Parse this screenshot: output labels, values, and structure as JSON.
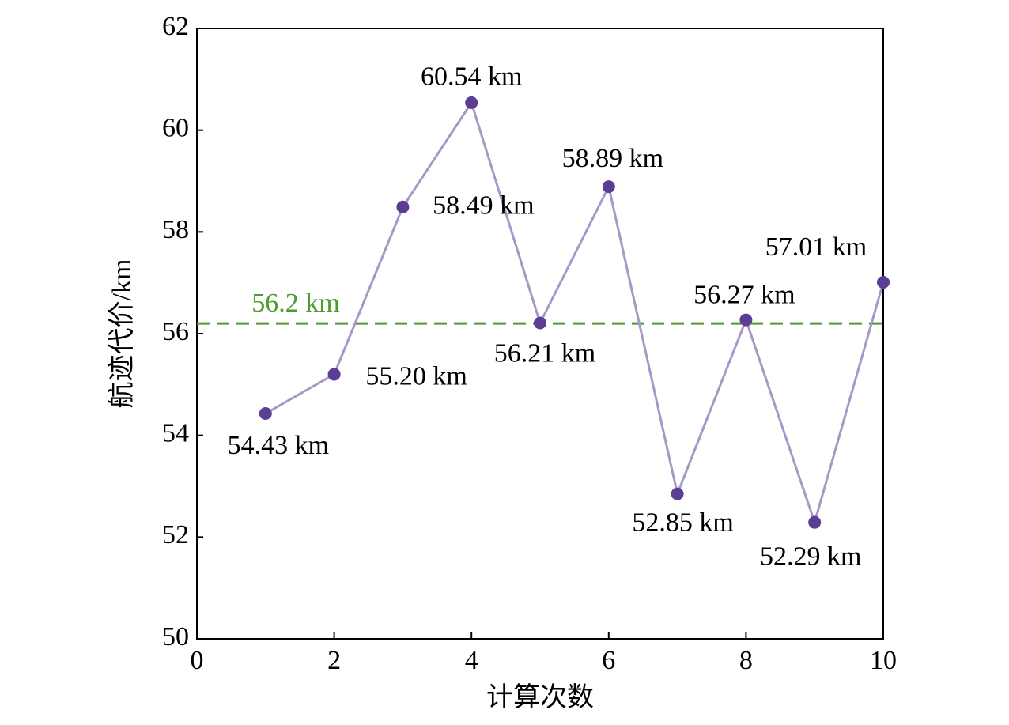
{
  "chart_data": {
    "type": "line",
    "x_label": "计算次数",
    "y_label": "航迹代价/km",
    "x": [
      1,
      2,
      3,
      4,
      5,
      6,
      7,
      8,
      9,
      10
    ],
    "series": [
      {
        "name": "航迹代价",
        "color": "#a898c8",
        "marker_color": "#5b3d94",
        "values": [
          54.43,
          55.2,
          58.49,
          60.54,
          56.21,
          58.89,
          52.85,
          56.27,
          52.29,
          57.01
        ],
        "value_labels": [
          "54.43 km",
          "55.20 km",
          "58.49 km",
          "60.54 km",
          "56.21 km",
          "58.89 km",
          "52.85 km",
          "56.27 km",
          "52.29 km",
          "57.01 km"
        ]
      }
    ],
    "reference_line": {
      "value": 56.2,
      "label": "56.2 km",
      "color": "#4c9c2e"
    },
    "xlim": [
      0,
      10
    ],
    "xticks": [
      0,
      2,
      4,
      6,
      8,
      10
    ],
    "ylim": [
      50,
      62
    ],
    "yticks": [
      50,
      52,
      54,
      56,
      58,
      60,
      62
    ],
    "grid": false
  }
}
